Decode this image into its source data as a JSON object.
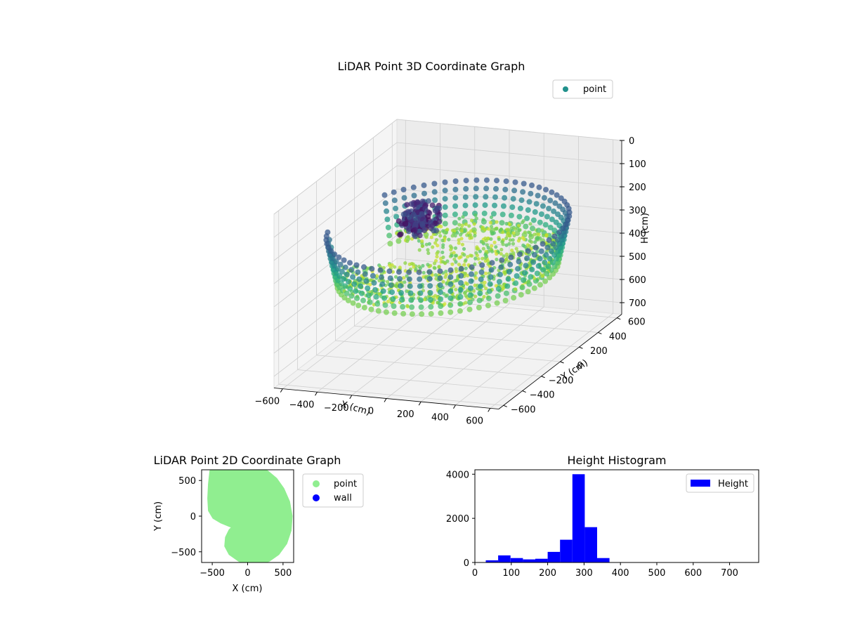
{
  "chart_data": [
    {
      "type": "scatter3d",
      "title": "LiDAR Point 3D Coordinate Graph",
      "xlabel": "X (cm)",
      "ylabel": "Y (cm)",
      "zlabel": "H (cm)",
      "xticks": [
        -600,
        -400,
        -200,
        0,
        200,
        400,
        600
      ],
      "yticks": [
        -600,
        -400,
        -200,
        0,
        200,
        400,
        600
      ],
      "zticks": [
        0,
        100,
        200,
        300,
        400,
        500,
        600,
        700
      ],
      "xlim": [
        -650,
        650
      ],
      "ylim": [
        -650,
        650
      ],
      "zlim": [
        750,
        0
      ],
      "zinverted": true,
      "colormap": "viridis",
      "legend": {
        "position": "top-right",
        "entries": [
          {
            "label": "point",
            "color": "#21918c"
          }
        ]
      },
      "grid": true,
      "cloud": {
        "outer_radius_cm": 620,
        "wall_height_cm": [
          0,
          380
        ],
        "floor_height_cm": 300,
        "cluster_center_cm": [
          -300,
          250
        ],
        "notch_angle_range_deg": [
          150,
          200
        ]
      }
    },
    {
      "type": "scatter",
      "title": "LiDAR Point 2D Coordinate Graph",
      "xlabel": "X (cm)",
      "ylabel": "Y (cm)",
      "xticks": [
        -500,
        0,
        500
      ],
      "yticks": [
        -500,
        0,
        500
      ],
      "xlim": [
        -650,
        650
      ],
      "ylim": [
        -650,
        650
      ],
      "legend": {
        "position": "outside-right",
        "entries": [
          {
            "label": "point",
            "color": "#90ee90"
          },
          {
            "label": "wall",
            "color": "#0000ff"
          }
        ]
      },
      "point_region": [
        [
          -520,
          630
        ],
        [
          -450,
          680
        ],
        [
          -300,
          710
        ],
        [
          -150,
          720
        ],
        [
          0,
          710
        ],
        [
          150,
          680
        ],
        [
          280,
          620
        ],
        [
          400,
          520
        ],
        [
          500,
          380
        ],
        [
          580,
          200
        ],
        [
          615,
          0
        ],
        [
          600,
          -200
        ],
        [
          540,
          -380
        ],
        [
          430,
          -530
        ],
        [
          300,
          -620
        ],
        [
          150,
          -670
        ],
        [
          0,
          -665
        ],
        [
          -120,
          -620
        ],
        [
          -250,
          -530
        ],
        [
          -310,
          -420
        ],
        [
          -300,
          -300
        ],
        [
          -250,
          -200
        ],
        [
          -200,
          -150
        ],
        [
          -260,
          -130
        ],
        [
          -380,
          -80
        ],
        [
          -480,
          -20
        ],
        [
          -540,
          80
        ],
        [
          -550,
          250
        ],
        [
          -540,
          450
        ]
      ],
      "wall_points": []
    },
    {
      "type": "histogram",
      "title": "Height Histogram",
      "xticks": [
        0,
        100,
        200,
        300,
        400,
        500,
        600,
        700
      ],
      "yticks": [
        0,
        2000,
        4000
      ],
      "xlim": [
        0,
        780
      ],
      "ylim": [
        0,
        4200
      ],
      "legend": {
        "position": "top-right",
        "entries": [
          {
            "label": "Height",
            "color": "#0000ff"
          }
        ]
      },
      "bin_width": 34,
      "bins": [
        {
          "start": 30,
          "count": 100
        },
        {
          "start": 64,
          "count": 320
        },
        {
          "start": 98,
          "count": 200
        },
        {
          "start": 132,
          "count": 140
        },
        {
          "start": 166,
          "count": 170
        },
        {
          "start": 200,
          "count": 480
        },
        {
          "start": 234,
          "count": 1030
        },
        {
          "start": 268,
          "count": 4000
        },
        {
          "start": 302,
          "count": 1600
        },
        {
          "start": 336,
          "count": 200
        }
      ]
    }
  ]
}
